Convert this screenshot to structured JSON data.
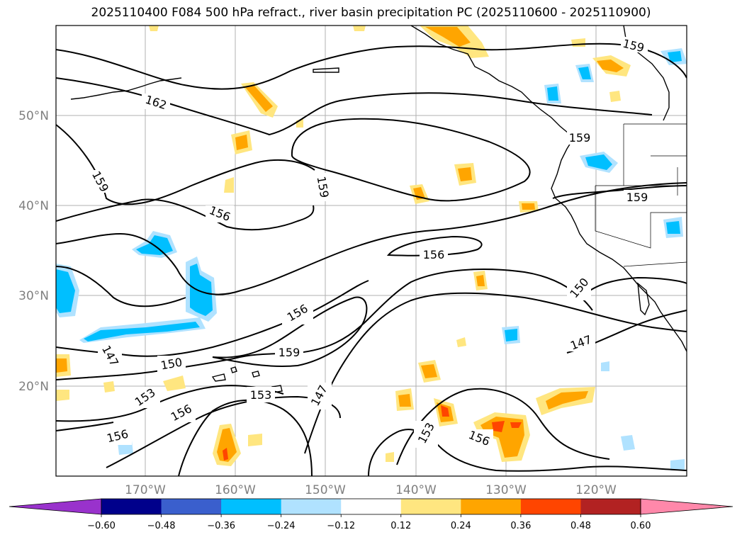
{
  "title": "2025110400 F084 500 hPa refract., river basin precipitation PC (2025110600 - 2025110900)",
  "lat_labels": [
    "50°N",
    "40°N",
    "30°N",
    "20°N"
  ],
  "lon_labels": [
    "170°W",
    "160°W",
    "150°W",
    "140°W",
    "130°W",
    "120°W"
  ],
  "contour_labels": [
    "162",
    "159",
    "159",
    "159",
    "159",
    "159",
    "156",
    "156",
    "156",
    "156",
    "156",
    "159",
    "153",
    "153",
    "150",
    "150",
    "147",
    "147",
    "147",
    "156",
    "153",
    "156"
  ],
  "colorbar": {
    "tick_labels": [
      "−0.60",
      "−0.48",
      "−0.36",
      "−0.24",
      "−0.12",
      "0.12",
      "0.24",
      "0.36",
      "0.48",
      "0.60"
    ],
    "bin_colors": [
      "#9932cc",
      "#00008b",
      "#3a5fcd",
      "#00bfff",
      "#b0e2ff",
      "#ffffff",
      "#ffe680",
      "#ffa500",
      "#ff4500",
      "#b22222",
      "#ff88aa"
    ]
  },
  "colors": {
    "positive_light": "#ffe680",
    "positive_mid": "#ffa500",
    "positive_strong": "#ff4500",
    "negative_light": "#b0e2ff",
    "negative_mid": "#00bfff",
    "contour": "#000000",
    "grid": "#b0b0b0"
  }
}
